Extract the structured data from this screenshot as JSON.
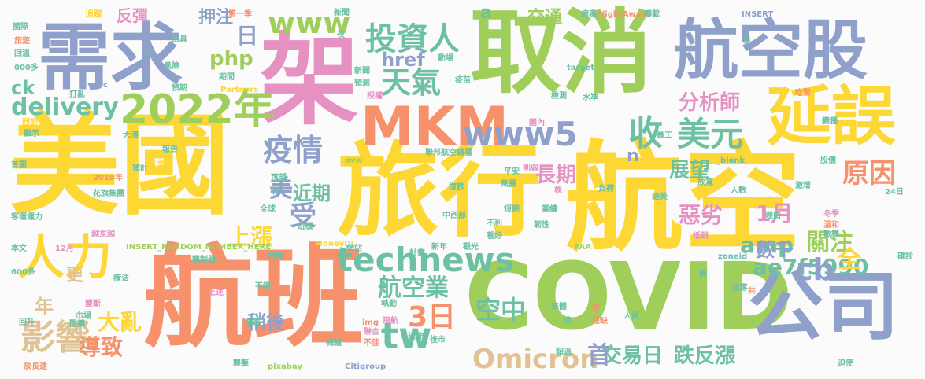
{
  "palette": {
    "yellow": "#fdd734",
    "orange": "#f6916b",
    "green": "#9fcf5a",
    "blue": "#8fa1cb",
    "pink": "#e592c3",
    "teal": "#6cc1a3",
    "tan": "#e1c292"
  },
  "words": [
    {
      "text": "美國",
      "color": "yellow"
    },
    {
      "text": "航空",
      "color": "yellow"
    },
    {
      "text": "旅行",
      "color": "yellow"
    },
    {
      "text": "航班",
      "color": "orange"
    },
    {
      "text": "取消",
      "color": "green"
    },
    {
      "text": "架",
      "color": "pink"
    },
    {
      "text": "COVID",
      "color": "green"
    },
    {
      "text": "航空股",
      "color": "blue"
    },
    {
      "text": "需求",
      "color": "blue"
    },
    {
      "text": "公司",
      "color": "blue"
    },
    {
      "text": "延誤",
      "color": "yellow"
    },
    {
      "text": "MKM",
      "color": "orange"
    },
    {
      "text": "人力",
      "color": "yellow"
    },
    {
      "text": "2022年",
      "color": "green"
    },
    {
      "text": "technews",
      "color": "teal"
    },
    {
      "text": "Omicron",
      "color": "tan"
    },
    {
      "text": "投資人",
      "color": "teal"
    },
    {
      "text": "www5",
      "color": "blue"
    },
    {
      "text": "www",
      "color": "green"
    },
    {
      "text": "影響",
      "color": "tan"
    },
    {
      "text": "天氣",
      "color": "teal"
    },
    {
      "text": "美元",
      "color": "teal"
    },
    {
      "text": "收",
      "color": "teal"
    },
    {
      "text": "疫情",
      "color": "blue"
    },
    {
      "text": "delivery",
      "color": "teal"
    },
    {
      "text": "ae7f5990",
      "color": "teal"
    },
    {
      "text": "航空業",
      "color": "teal"
    },
    {
      "text": "原因",
      "color": "orange"
    },
    {
      "text": "空中",
      "color": "teal"
    },
    {
      "text": "交易日",
      "color": "teal"
    },
    {
      "text": "跌反漲",
      "color": "teal"
    },
    {
      "text": "3日",
      "color": "orange"
    },
    {
      "text": "1月",
      "color": "pink"
    },
    {
      "text": "分析師",
      "color": "pink"
    },
    {
      "text": "amp",
      "color": "teal"
    },
    {
      "text": "關注",
      "color": "green"
    },
    {
      "text": "tw",
      "color": "teal"
    },
    {
      "text": "導致",
      "color": "orange"
    },
    {
      "text": "上漲",
      "color": "yellow"
    },
    {
      "text": "cb",
      "color": "blue"
    },
    {
      "text": "全",
      "color": "yellow"
    },
    {
      "text": "大亂",
      "color": "yellow"
    },
    {
      "text": "惡劣",
      "color": "pink"
    },
    {
      "text": "數千",
      "color": "blue"
    },
    {
      "text": "展望",
      "color": "teal"
    },
    {
      "text": "長期",
      "color": "pink"
    },
    {
      "text": "近期",
      "color": "teal"
    },
    {
      "text": "受",
      "color": "blue"
    },
    {
      "text": "美",
      "color": "blue"
    },
    {
      "text": "稍後",
      "color": "blue"
    },
    {
      "text": "首",
      "color": "blue"
    },
    {
      "text": "更",
      "color": "tan"
    },
    {
      "text": "年",
      "color": "tan"
    },
    {
      "text": "php",
      "color": "green"
    },
    {
      "text": "日",
      "color": "blue"
    },
    {
      "text": "反彈",
      "color": "pink"
    },
    {
      "text": "押注",
      "color": "blue"
    },
    {
      "text": "交通",
      "color": "green"
    },
    {
      "text": "href",
      "color": "blue"
    },
    {
      "text": "ck",
      "color": "teal"
    },
    {
      "text": "a",
      "color": "teal"
    },
    {
      "text": "n",
      "color": "blue"
    },
    {
      "text": "FlightAware",
      "color": "orange"
    },
    {
      "text": "INSERT_RANDOM_NUMBER_HERE",
      "color": "green"
    },
    {
      "text": "MoneyDJ",
      "color": "yellow"
    },
    {
      "text": "Citigroup",
      "color": "blue"
    },
    {
      "text": "pixabay",
      "color": "green"
    },
    {
      "text": "Partners",
      "color": "yellow"
    },
    {
      "text": "INSERT",
      "color": "blue"
    },
    {
      "text": "target",
      "color": "teal"
    },
    {
      "text": "_blank",
      "color": "teal"
    },
    {
      "text": "zoneid",
      "color": "teal"
    },
    {
      "text": "avw",
      "color": "green"
    },
    {
      "text": "img",
      "color": "orange"
    },
    {
      "text": "src",
      "color": "blue"
    },
    {
      "text": "FAA",
      "color": "green"
    },
    {
      "text": "第一季",
      "color": "orange"
    },
    {
      "text": "追蹤",
      "color": "yellow"
    },
    {
      "text": "國際",
      "color": "teal"
    },
    {
      "text": "旅遊",
      "color": "orange"
    },
    {
      "text": "回溫",
      "color": "teal"
    },
    {
      "text": "000多",
      "color": "teal"
    },
    {
      "text": "回到",
      "color": "yellow"
    },
    {
      "text": "顯示",
      "color": "teal"
    },
    {
      "text": "首圖",
      "color": "teal"
    },
    {
      "text": "客運運力",
      "color": "teal"
    },
    {
      "text": "越來越",
      "color": "pink"
    },
    {
      "text": "本文",
      "color": "teal"
    },
    {
      "text": "600多",
      "color": "teal"
    },
    {
      "text": "回升",
      "color": "teal"
    },
    {
      "text": "放長遠",
      "color": "orange"
    },
    {
      "text": "12月",
      "color": "pink"
    },
    {
      "text": "2019年",
      "color": "orange"
    },
    {
      "text": "花旗集團",
      "color": "teal"
    },
    {
      "text": "指出",
      "color": "yellow"
    },
    {
      "text": "報告",
      "color": "teal"
    },
    {
      "text": "預計",
      "color": "teal"
    },
    {
      "text": "大漲",
      "color": "teal"
    },
    {
      "text": "打亂",
      "color": "teal"
    },
    {
      "text": "出具",
      "color": "teal"
    },
    {
      "text": "風險",
      "color": "teal"
    },
    {
      "text": "期間",
      "color": "teal"
    },
    {
      "text": "預期",
      "color": "teal"
    },
    {
      "text": "新聞",
      "color": "teal"
    },
    {
      "text": "預測",
      "color": "teal"
    },
    {
      "text": "授權",
      "color": "pink"
    },
    {
      "text": "動場",
      "color": "teal"
    },
    {
      "text": "疫苗",
      "color": "teal"
    },
    {
      "text": "病毒",
      "color": "teal"
    },
    {
      "text": "國內",
      "color": "pink"
    },
    {
      "text": "檢測",
      "color": "teal"
    },
    {
      "text": "水準",
      "color": "teal"
    },
    {
      "text": "員工",
      "color": "teal"
    },
    {
      "text": "吃緊",
      "color": "orange"
    },
    {
      "text": "變種",
      "color": "teal"
    },
    {
      "text": "股價",
      "color": "teal"
    },
    {
      "text": "激增",
      "color": "teal"
    },
    {
      "text": "24日",
      "color": "teal"
    },
    {
      "text": "理由",
      "color": "teal"
    },
    {
      "text": "冬季",
      "color": "pink"
    },
    {
      "text": "溫和",
      "color": "orange"
    },
    {
      "text": "數樣",
      "color": "teal"
    },
    {
      "text": "確診",
      "color": "teal"
    },
    {
      "text": "旅客",
      "color": "teal"
    },
    {
      "text": "共",
      "color": "orange"
    },
    {
      "text": "迫使",
      "color": "teal"
    },
    {
      "text": "人員",
      "color": "teal"
    },
    {
      "text": "短缺",
      "color": "orange"
    },
    {
      "text": "底",
      "color": "orange"
    },
    {
      "text": "追",
      "color": "teal"
    },
    {
      "text": "集體",
      "color": "teal"
    },
    {
      "text": "超過",
      "color": "teal"
    },
    {
      "text": "後市",
      "color": "teal"
    },
    {
      "text": "延伸",
      "color": "teal"
    },
    {
      "text": "聯合",
      "color": "pink"
    },
    {
      "text": "飛航",
      "color": "pink"
    },
    {
      "text": "不佳",
      "color": "orange"
    },
    {
      "text": "機組",
      "color": "teal"
    },
    {
      "text": "襲擊",
      "color": "teal"
    },
    {
      "text": "地區",
      "color": "teal"
    },
    {
      "text": "執勤",
      "color": "teal"
    },
    {
      "text": "網站",
      "color": "teal"
    },
    {
      "text": "來源",
      "color": "orange"
    },
    {
      "text": "稍晚",
      "color": "teal"
    },
    {
      "text": "計畫",
      "color": "teal"
    },
    {
      "text": "新年",
      "color": "teal"
    },
    {
      "text": "觀光",
      "color": "teal"
    },
    {
      "text": "中西部",
      "color": "teal"
    },
    {
      "text": "不利",
      "color": "teal"
    },
    {
      "text": "看好",
      "color": "teal"
    },
    {
      "text": "韌性",
      "color": "teal"
    },
    {
      "text": "業績",
      "color": "teal"
    },
    {
      "text": "短期",
      "color": "teal"
    },
    {
      "text": "負荷",
      "color": "teal"
    },
    {
      "text": "速美",
      "color": "teal"
    },
    {
      "text": "放寬",
      "color": "teal"
    },
    {
      "text": "人數",
      "color": "teal"
    },
    {
      "text": "株",
      "color": "pink"
    },
    {
      "text": "平安",
      "color": "teal"
    },
    {
      "text": "風暴",
      "color": "teal"
    },
    {
      "text": "削弱",
      "color": "pink"
    },
    {
      "text": "聯邦航空總署",
      "color": "teal"
    },
    {
      "text": "全球",
      "color": "teal"
    },
    {
      "text": "班機",
      "color": "teal"
    },
    {
      "text": "段",
      "color": "teal"
    },
    {
      "text": "可望",
      "color": "teal"
    },
    {
      "text": "復甦",
      "color": "teal"
    },
    {
      "text": "療法",
      "color": "teal"
    },
    {
      "text": "市場",
      "color": "teal"
    },
    {
      "text": "閱讀",
      "color": "teal"
    },
    {
      "text": "不堪",
      "color": "teal"
    },
    {
      "text": "上述",
      "color": "pink"
    },
    {
      "text": "壟斷",
      "color": "pink"
    },
    {
      "text": "壟制器",
      "color": "teal"
    },
    {
      "text": "夜",
      "color": "teal"
    },
    {
      "text": "轉載",
      "color": "teal"
    },
    {
      "text": "新聞",
      "color": "teal"
    },
    {
      "text": "呈",
      "color": "teal"
    },
    {
      "text": "廣",
      "color": "teal"
    },
    {
      "text": "抵銷",
      "color": "pink"
    },
    {
      "text": "回",
      "color": "teal"
    }
  ]
}
